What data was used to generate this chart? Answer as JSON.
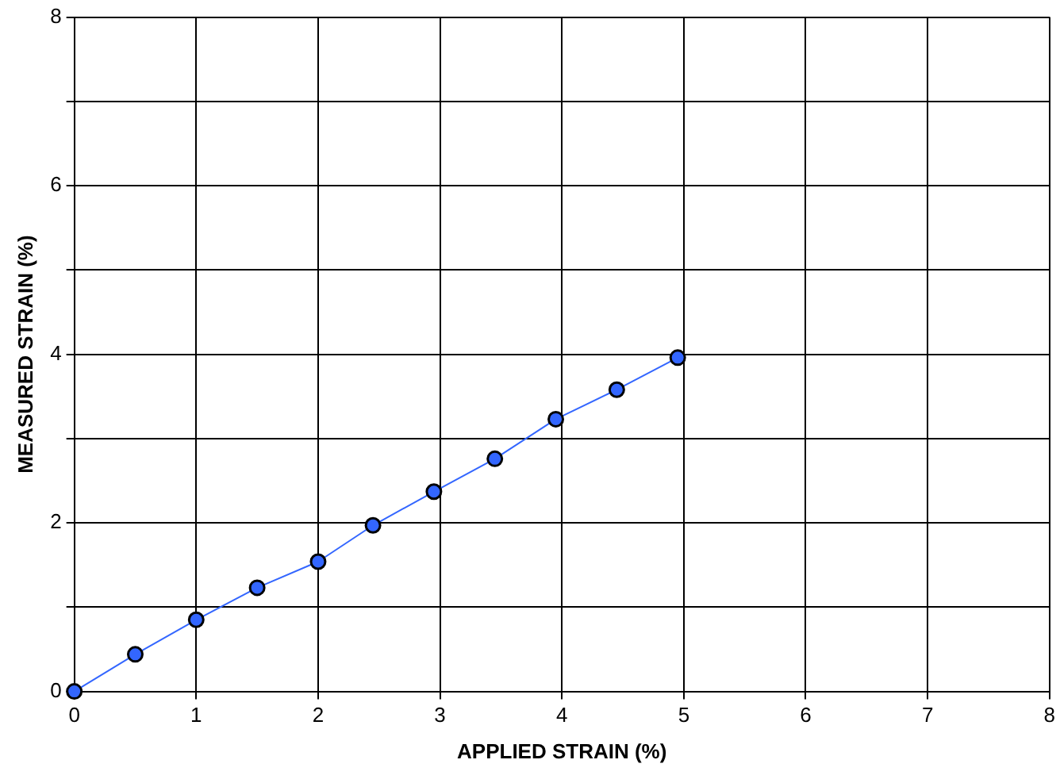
{
  "chart_data": {
    "type": "line",
    "xlabel": "APPLIED STRAIN (%)",
    "ylabel": "MEASURED STRAIN (%)",
    "x": [
      0,
      0.5,
      1,
      1.5,
      2,
      2.45,
      2.95,
      3.45,
      3.95,
      4.45,
      4.95
    ],
    "series": [
      {
        "color": "#3366ff",
        "values": [
          0,
          0.44,
          0.85,
          1.23,
          1.54,
          1.97,
          2.37,
          2.76,
          3.23,
          3.58,
          3.96
        ]
      }
    ],
    "xlim": [
      0,
      8
    ],
    "xticks": [
      0,
      1,
      2,
      3,
      4,
      5,
      6,
      7,
      8
    ],
    "ylim": [
      0,
      8
    ],
    "yticks": [
      0,
      {
        "value": 1,
        "label": null
      },
      2,
      {
        "value": 3,
        "label": null
      },
      4,
      {
        "value": 5,
        "label": null
      },
      6,
      {
        "value": 7,
        "label": null
      },
      8
    ],
    "grid": true,
    "legend": false,
    "marker": "circle",
    "line_style": "solid"
  }
}
